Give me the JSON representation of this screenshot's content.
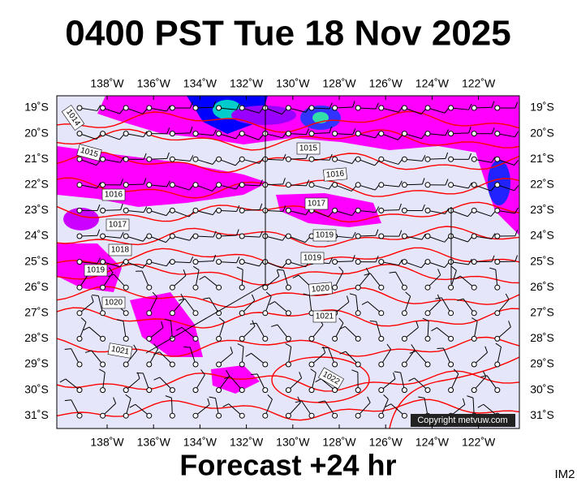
{
  "header": {
    "title": "0400 PST Tue 18 Nov 2025"
  },
  "map": {
    "longitudes": [
      "138˚W",
      "136˚W",
      "134˚W",
      "132˚W",
      "130˚W",
      "128˚W",
      "126˚W",
      "124˚W",
      "122˚W"
    ],
    "latitudes": [
      "19˚S",
      "20˚S",
      "21˚S",
      "22˚S",
      "23˚S",
      "24˚S",
      "25˚S",
      "26˚S",
      "27˚S",
      "28˚S",
      "29˚S",
      "30˚S",
      "31˚S"
    ],
    "isobar_labels": [
      "1014",
      "1015",
      "1016",
      "1017",
      "1018",
      "1019",
      "1020",
      "1021",
      "1015",
      "1016",
      "1017",
      "1019",
      "1019",
      "1020",
      "1021",
      "1022"
    ],
    "copyright": "Copyright metvuw.com"
  },
  "footer": {
    "caption": "Forecast +24 hr",
    "image_id": "IM2"
  }
}
